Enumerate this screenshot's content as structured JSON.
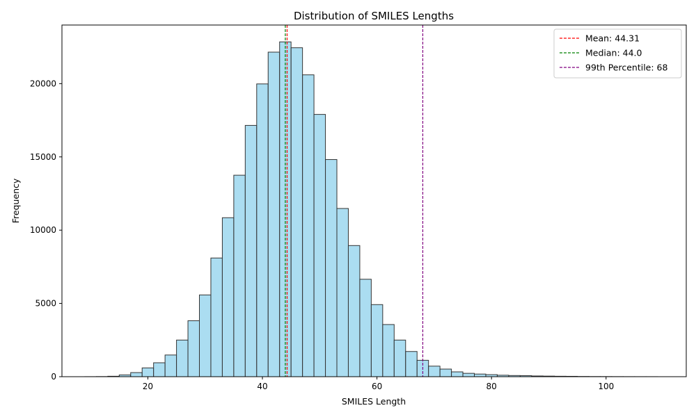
{
  "chart_data": {
    "type": "bar",
    "title": "Distribution of SMILES Lengths",
    "xlabel": "SMILES Length",
    "ylabel": "Frequency",
    "xlim": [
      5,
      114
    ],
    "ylim": [
      0,
      24000
    ],
    "xticks": [
      20,
      40,
      60,
      80,
      100
    ],
    "yticks": [
      0,
      5000,
      10000,
      15000,
      20000
    ],
    "grid": false,
    "legend_position": "top-right",
    "bar_color": "#87ceeb",
    "bar_edge_color": "#333333",
    "bins": [
      [
        9,
        11,
        3
      ],
      [
        11,
        13,
        8
      ],
      [
        13,
        15,
        30
      ],
      [
        15,
        17,
        120
      ],
      [
        17,
        19,
        280
      ],
      [
        19,
        21,
        600
      ],
      [
        21,
        23,
        950
      ],
      [
        23,
        25,
        1480
      ],
      [
        25,
        27,
        2500
      ],
      [
        27,
        29,
        3820
      ],
      [
        29,
        31,
        5580
      ],
      [
        31,
        33,
        8100
      ],
      [
        33,
        35,
        10850
      ],
      [
        35,
        37,
        13750
      ],
      [
        37,
        39,
        17150
      ],
      [
        39,
        41,
        19980
      ],
      [
        41,
        43,
        22150
      ],
      [
        43,
        45,
        22850
      ],
      [
        45,
        47,
        22450
      ],
      [
        47,
        49,
        20600
      ],
      [
        49,
        51,
        17900
      ],
      [
        51,
        53,
        14820
      ],
      [
        53,
        55,
        11480
      ],
      [
        55,
        57,
        8950
      ],
      [
        57,
        59,
        6650
      ],
      [
        59,
        61,
        4920
      ],
      [
        61,
        63,
        3560
      ],
      [
        63,
        65,
        2500
      ],
      [
        65,
        67,
        1720
      ],
      [
        67,
        69,
        1120
      ],
      [
        69,
        71,
        720
      ],
      [
        71,
        73,
        520
      ],
      [
        73,
        75,
        330
      ],
      [
        75,
        77,
        230
      ],
      [
        77,
        79,
        180
      ],
      [
        79,
        81,
        140
      ],
      [
        81,
        83,
        100
      ],
      [
        83,
        85,
        80
      ],
      [
        85,
        87,
        70
      ],
      [
        87,
        89,
        50
      ],
      [
        89,
        91,
        40
      ],
      [
        91,
        93,
        30
      ],
      [
        93,
        95,
        25
      ],
      [
        95,
        97,
        15
      ],
      [
        97,
        99,
        10
      ],
      [
        99,
        101,
        8
      ],
      [
        101,
        103,
        6
      ],
      [
        103,
        105,
        4
      ],
      [
        105,
        107,
        3
      ],
      [
        107,
        109,
        2
      ]
    ],
    "reference_lines": [
      {
        "name": "Mean: 44.31",
        "x": 44.31,
        "color": "#ff0000"
      },
      {
        "name": "Median: 44.0",
        "x": 44.0,
        "color": "#008000"
      },
      {
        "name": "99th Percentile: 68",
        "x": 68,
        "color": "#800080"
      }
    ]
  }
}
